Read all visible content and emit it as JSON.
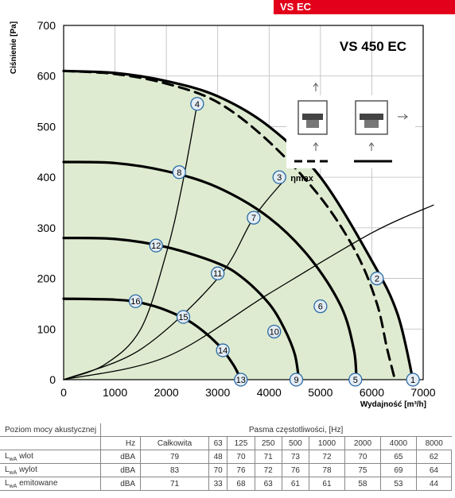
{
  "badge": "VS EC",
  "chart_data": {
    "type": "line",
    "title": "VS 450 EC",
    "xlabel": "Wydajność [m³/h]",
    "ylabel": "Ciśnienie [Pa]",
    "xlim": [
      0,
      7000
    ],
    "ylim": [
      0,
      700
    ],
    "x_ticks": [
      0,
      1000,
      2000,
      3000,
      4000,
      5000,
      6000,
      7000
    ],
    "y_ticks": [
      0,
      100,
      200,
      300,
      400,
      500,
      600,
      700
    ],
    "grid": true,
    "eta_label": "ηmax",
    "series": [
      {
        "style": "solid-bold",
        "points": [
          [
            0,
            610
          ],
          [
            1000,
            606
          ],
          [
            2000,
            590
          ],
          [
            3000,
            560
          ],
          [
            4000,
            500
          ],
          [
            5000,
            400
          ],
          [
            6000,
            235
          ],
          [
            6500,
            130
          ],
          [
            6800,
            0
          ]
        ]
      },
      {
        "style": "dashed",
        "points": [
          [
            0,
            610
          ],
          [
            1000,
            604
          ],
          [
            2000,
            585
          ],
          [
            3000,
            548
          ],
          [
            4000,
            470
          ],
          [
            5000,
            360
          ],
          [
            5700,
            250
          ],
          [
            6100,
            150
          ],
          [
            6300,
            60
          ],
          [
            6450,
            0
          ]
        ]
      },
      {
        "style": "solid-bold",
        "points": [
          [
            0,
            430
          ],
          [
            1000,
            428
          ],
          [
            2000,
            412
          ],
          [
            3000,
            380
          ],
          [
            4000,
            320
          ],
          [
            4800,
            240
          ],
          [
            5400,
            145
          ],
          [
            5650,
            60
          ],
          [
            5700,
            0
          ]
        ]
      },
      {
        "style": "solid-bold",
        "points": [
          [
            0,
            280
          ],
          [
            1000,
            278
          ],
          [
            2000,
            262
          ],
          [
            3000,
            230
          ],
          [
            3500,
            200
          ],
          [
            4000,
            150
          ],
          [
            4300,
            100
          ],
          [
            4500,
            50
          ],
          [
            4580,
            0
          ]
        ]
      },
      {
        "style": "solid-bold",
        "points": [
          [
            0,
            160
          ],
          [
            1000,
            158
          ],
          [
            1500,
            152
          ],
          [
            2000,
            137
          ],
          [
            2500,
            112
          ],
          [
            3000,
            70
          ],
          [
            3300,
            30
          ],
          [
            3450,
            0
          ]
        ]
      },
      {
        "style": "solid",
        "points": [
          [
            0,
            0
          ],
          [
            800,
            30
          ],
          [
            1500,
            100
          ],
          [
            2000,
            250
          ],
          [
            2300,
            380
          ],
          [
            2600,
            545
          ]
        ]
      },
      {
        "style": "solid",
        "points": [
          [
            0,
            0
          ],
          [
            1500,
            60
          ],
          [
            3000,
            200
          ],
          [
            3700,
            320
          ],
          [
            4300,
            395
          ]
        ]
      },
      {
        "style": "solid",
        "points": [
          [
            0,
            0
          ],
          [
            2000,
            45
          ],
          [
            4000,
            170
          ],
          [
            6000,
            290
          ],
          [
            7200,
            345
          ]
        ]
      }
    ],
    "points": [
      {
        "label": "1",
        "x": 6800,
        "y": 0
      },
      {
        "label": "2",
        "x": 6100,
        "y": 200
      },
      {
        "label": "3",
        "x": 4200,
        "y": 400
      },
      {
        "label": "4",
        "x": 2600,
        "y": 545
      },
      {
        "label": "5",
        "x": 5680,
        "y": 0
      },
      {
        "label": "6",
        "x": 5000,
        "y": 145
      },
      {
        "label": "7",
        "x": 3700,
        "y": 320
      },
      {
        "label": "8",
        "x": 2250,
        "y": 410
      },
      {
        "label": "9",
        "x": 4530,
        "y": 0
      },
      {
        "label": "10",
        "x": 4100,
        "y": 95
      },
      {
        "label": "11",
        "x": 3000,
        "y": 210
      },
      {
        "label": "12",
        "x": 1800,
        "y": 265
      },
      {
        "label": "13",
        "x": 3450,
        "y": 0
      },
      {
        "label": "14",
        "x": 3100,
        "y": 58
      },
      {
        "label": "15",
        "x": 2330,
        "y": 124
      },
      {
        "label": "16",
        "x": 1400,
        "y": 155
      }
    ]
  },
  "table": {
    "row_header": "Poziom mocy akustycznej",
    "band_header": "Pasma częstotliwości, [Hz]",
    "unit_header": "Hz",
    "columns": [
      "Całkowita",
      "63",
      "125",
      "250",
      "500",
      "1000",
      "2000",
      "4000",
      "8000"
    ],
    "rows": [
      {
        "label_main": "L",
        "label_sub": "wA",
        "label_rest": " wlot",
        "unit": "dBA",
        "values": [
          "79",
          "48",
          "70",
          "71",
          "73",
          "72",
          "70",
          "65",
          "62"
        ]
      },
      {
        "label_main": "L",
        "label_sub": "wA",
        "label_rest": " wylot",
        "unit": "dBA",
        "values": [
          "83",
          "70",
          "76",
          "72",
          "76",
          "78",
          "75",
          "69",
          "64"
        ]
      },
      {
        "label_main": "L",
        "label_sub": "wA",
        "label_rest": " emitowane",
        "unit": "dBA",
        "values": [
          "71",
          "33",
          "68",
          "63",
          "61",
          "61",
          "58",
          "53",
          "44"
        ]
      }
    ]
  }
}
